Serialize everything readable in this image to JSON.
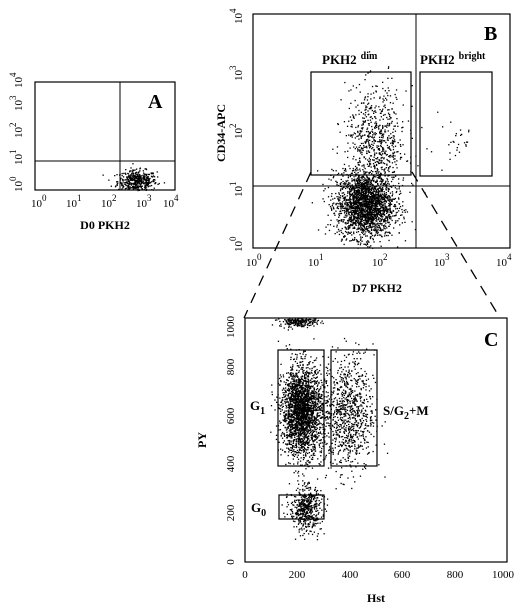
{
  "panels": [
    {
      "letter": "A",
      "xlabel": "D0 PKH2",
      "ylabel": "",
      "x_ticks": [
        {
          "base": "10",
          "exp": "0"
        },
        {
          "base": "10",
          "exp": "1"
        },
        {
          "base": "10",
          "exp": "2"
        },
        {
          "base": "10",
          "exp": "3"
        },
        {
          "base": "10",
          "exp": "4"
        }
      ],
      "y_ticks": [
        {
          "base": "10",
          "exp": "0"
        },
        {
          "base": "10",
          "exp": "1"
        },
        {
          "base": "10",
          "exp": "2"
        },
        {
          "base": "10",
          "exp": "3"
        },
        {
          "base": "10",
          "exp": "4"
        }
      ]
    },
    {
      "letter": "B",
      "xlabel": "D7 PKH2",
      "ylabel": "CD34-APC",
      "x_ticks": [
        {
          "base": "10",
          "exp": "0"
        },
        {
          "base": "10",
          "exp": "1"
        },
        {
          "base": "10",
          "exp": "2"
        },
        {
          "base": "10",
          "exp": "3"
        },
        {
          "base": "10",
          "exp": "4"
        }
      ],
      "y_ticks": [
        {
          "base": "10",
          "exp": "0"
        },
        {
          "base": "10",
          "exp": "1"
        },
        {
          "base": "10",
          "exp": "2"
        },
        {
          "base": "10",
          "exp": "3"
        },
        {
          "base": "10",
          "exp": "4"
        }
      ],
      "gates": [
        {
          "text": "PKH2",
          "sup": "dim"
        },
        {
          "text": "PKH2",
          "sup": "bright"
        }
      ]
    },
    {
      "letter": "C",
      "xlabel": "Hst",
      "ylabel": "PY",
      "x_ticks": [
        "0",
        "200",
        "400",
        "600",
        "800",
        "1000"
      ],
      "y_ticks": [
        "0",
        "200",
        "400",
        "600",
        "800",
        "1000"
      ],
      "gates": [
        {
          "text": "G",
          "sub": "1",
          "rest": ""
        },
        {
          "text": "S/G",
          "sub": "2",
          "rest": "+M"
        },
        {
          "text": "G",
          "sub": "0",
          "rest": ""
        }
      ]
    }
  ],
  "chart_data": [
    {
      "type": "scatter",
      "panel": "A",
      "title": "",
      "xlabel": "D0 PKH2",
      "ylabel": "",
      "x_scale": "log",
      "y_scale": "log",
      "xlim": [
        1,
        10000
      ],
      "ylim": [
        1,
        10000
      ],
      "quadrant_lines": {
        "x": 300,
        "y": 10
      },
      "clusters": [
        {
          "x_center": 800,
          "y_center": 2.2,
          "n_points": 450
        }
      ]
    },
    {
      "type": "scatter",
      "panel": "B",
      "title": "",
      "xlabel": "D7 PKH2",
      "ylabel": "CD34-APC",
      "x_scale": "log",
      "y_scale": "log",
      "xlim": [
        1,
        10000
      ],
      "ylim": [
        1,
        10000
      ],
      "quadrant_lines": {
        "x": 400,
        "y": 12
      },
      "gates": [
        {
          "name": "PKH2 dim",
          "x_range": [
            10,
            340
          ],
          "y_range": [
            15,
            1000
          ]
        },
        {
          "name": "PKH2 bright",
          "x_range": [
            430,
            6000
          ],
          "y_range": [
            18,
            1000
          ]
        }
      ],
      "clusters": [
        {
          "x_center": 55,
          "y_center": 5.5,
          "n_points": 2200
        },
        {
          "x_center": 80,
          "y_center": 60,
          "n_points": 700
        },
        {
          "x_center": 1200,
          "y_center": 70,
          "n_points": 28
        }
      ]
    },
    {
      "type": "scatter",
      "panel": "C",
      "title": "",
      "xlabel": "Hst",
      "ylabel": "PY",
      "xlim": [
        0,
        1000
      ],
      "ylim": [
        0,
        1000
      ],
      "gates": [
        {
          "name": "G1",
          "x_range": [
            130,
            310
          ],
          "y_range": [
            410,
            910
          ]
        },
        {
          "name": "S/G2+M",
          "x_range": [
            330,
            515
          ],
          "y_range": [
            410,
            910
          ]
        },
        {
          "name": "G0",
          "x_range": [
            130,
            305
          ],
          "y_range": [
            165,
            265
          ]
        }
      ],
      "clusters": [
        {
          "x_center": 215,
          "y_center": 620,
          "n_points": 2300
        },
        {
          "x_center": 230,
          "y_center": 220,
          "n_points": 500
        },
        {
          "x_center": 390,
          "y_center": 610,
          "n_points": 900
        },
        {
          "x_center": 200,
          "y_center": 990,
          "n_points": 250
        }
      ]
    }
  ]
}
